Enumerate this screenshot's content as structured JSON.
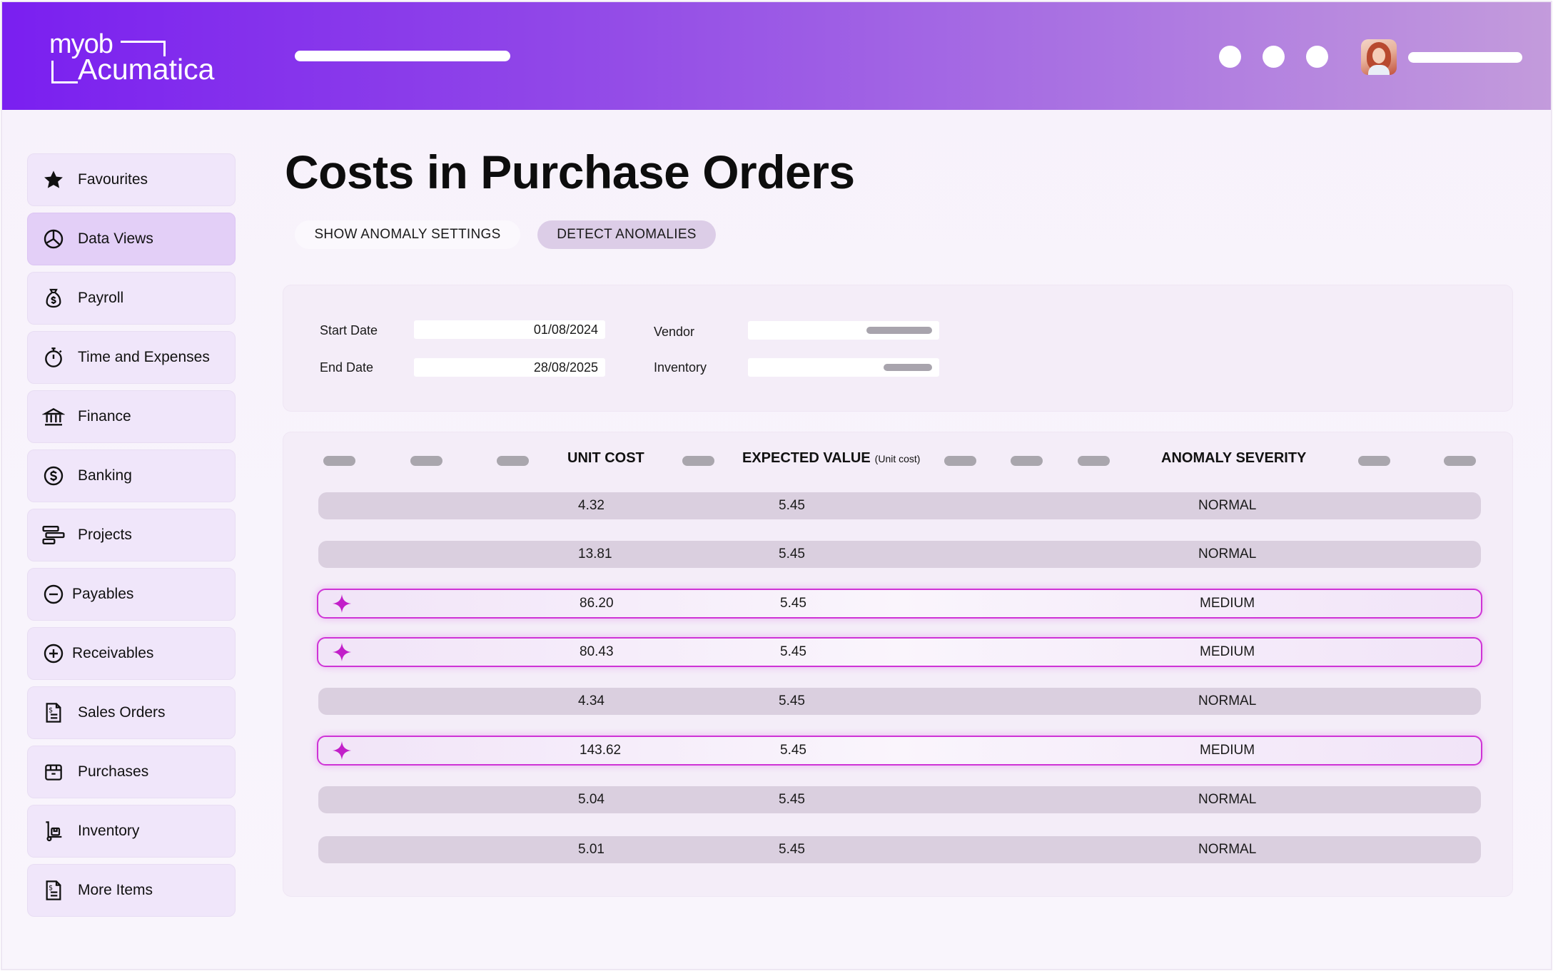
{
  "app": {
    "logo_top": "myob",
    "logo_bottom": "Acumatica"
  },
  "sidebar": {
    "items": [
      {
        "label": "Favourites",
        "icon": "star-icon"
      },
      {
        "label": "Data Views",
        "icon": "pie-chart-icon",
        "active": true
      },
      {
        "label": "Payroll",
        "icon": "money-bag-icon"
      },
      {
        "label": "Time and Expenses",
        "icon": "stopwatch-icon"
      },
      {
        "label": "Finance",
        "icon": "bank-icon"
      },
      {
        "label": "Banking",
        "icon": "dollar-circle-icon"
      },
      {
        "label": "Projects",
        "icon": "gantt-icon"
      },
      {
        "label": "Payables",
        "icon": "minus-circle-icon"
      },
      {
        "label": "Receivables",
        "icon": "plus-circle-icon"
      },
      {
        "label": "Sales Orders",
        "icon": "invoice-icon"
      },
      {
        "label": "Purchases",
        "icon": "box-icon"
      },
      {
        "label": "Inventory",
        "icon": "hand-truck-icon"
      },
      {
        "label": "More Items",
        "icon": "document-dollar-icon"
      }
    ]
  },
  "main": {
    "title": "Costs in Purchase Orders",
    "buttons": {
      "settings": "SHOW ANOMALY SETTINGS",
      "detect": "DETECT ANOMALIES"
    },
    "filters": {
      "start_date_label": "Start Date",
      "start_date_value": "01/08/2024",
      "end_date_label": "End Date",
      "end_date_value": "28/08/2025",
      "vendor_label": "Vendor",
      "inventory_label": "Inventory"
    },
    "grid": {
      "columns": {
        "unit_cost": "UNIT COST",
        "expected_value": "EXPECTED VALUE",
        "expected_value_sub": "(Unit cost)",
        "anomaly_severity": "ANOMALY SEVERITY"
      },
      "rows": [
        {
          "unit_cost": "4.32",
          "expected": "5.45",
          "severity": "NORMAL",
          "anomaly": false
        },
        {
          "unit_cost": "13.81",
          "expected": "5.45",
          "severity": "NORMAL",
          "anomaly": false
        },
        {
          "unit_cost": "86.20",
          "expected": "5.45",
          "severity": "MEDIUM",
          "anomaly": true
        },
        {
          "unit_cost": "80.43",
          "expected": "5.45",
          "severity": "MEDIUM",
          "anomaly": true
        },
        {
          "unit_cost": "4.34",
          "expected": "5.45",
          "severity": "NORMAL",
          "anomaly": false
        },
        {
          "unit_cost": "143.62",
          "expected": "5.45",
          "severity": "MEDIUM",
          "anomaly": true
        },
        {
          "unit_cost": "5.04",
          "expected": "5.45",
          "severity": "NORMAL",
          "anomaly": false
        },
        {
          "unit_cost": "5.01",
          "expected": "5.45",
          "severity": "NORMAL",
          "anomaly": false
        }
      ]
    }
  },
  "colors": {
    "header_start": "#7a1ff0",
    "header_end": "#c39bdc",
    "anomaly_border": "#cf33d6",
    "sparkle": "#c21fc9"
  }
}
